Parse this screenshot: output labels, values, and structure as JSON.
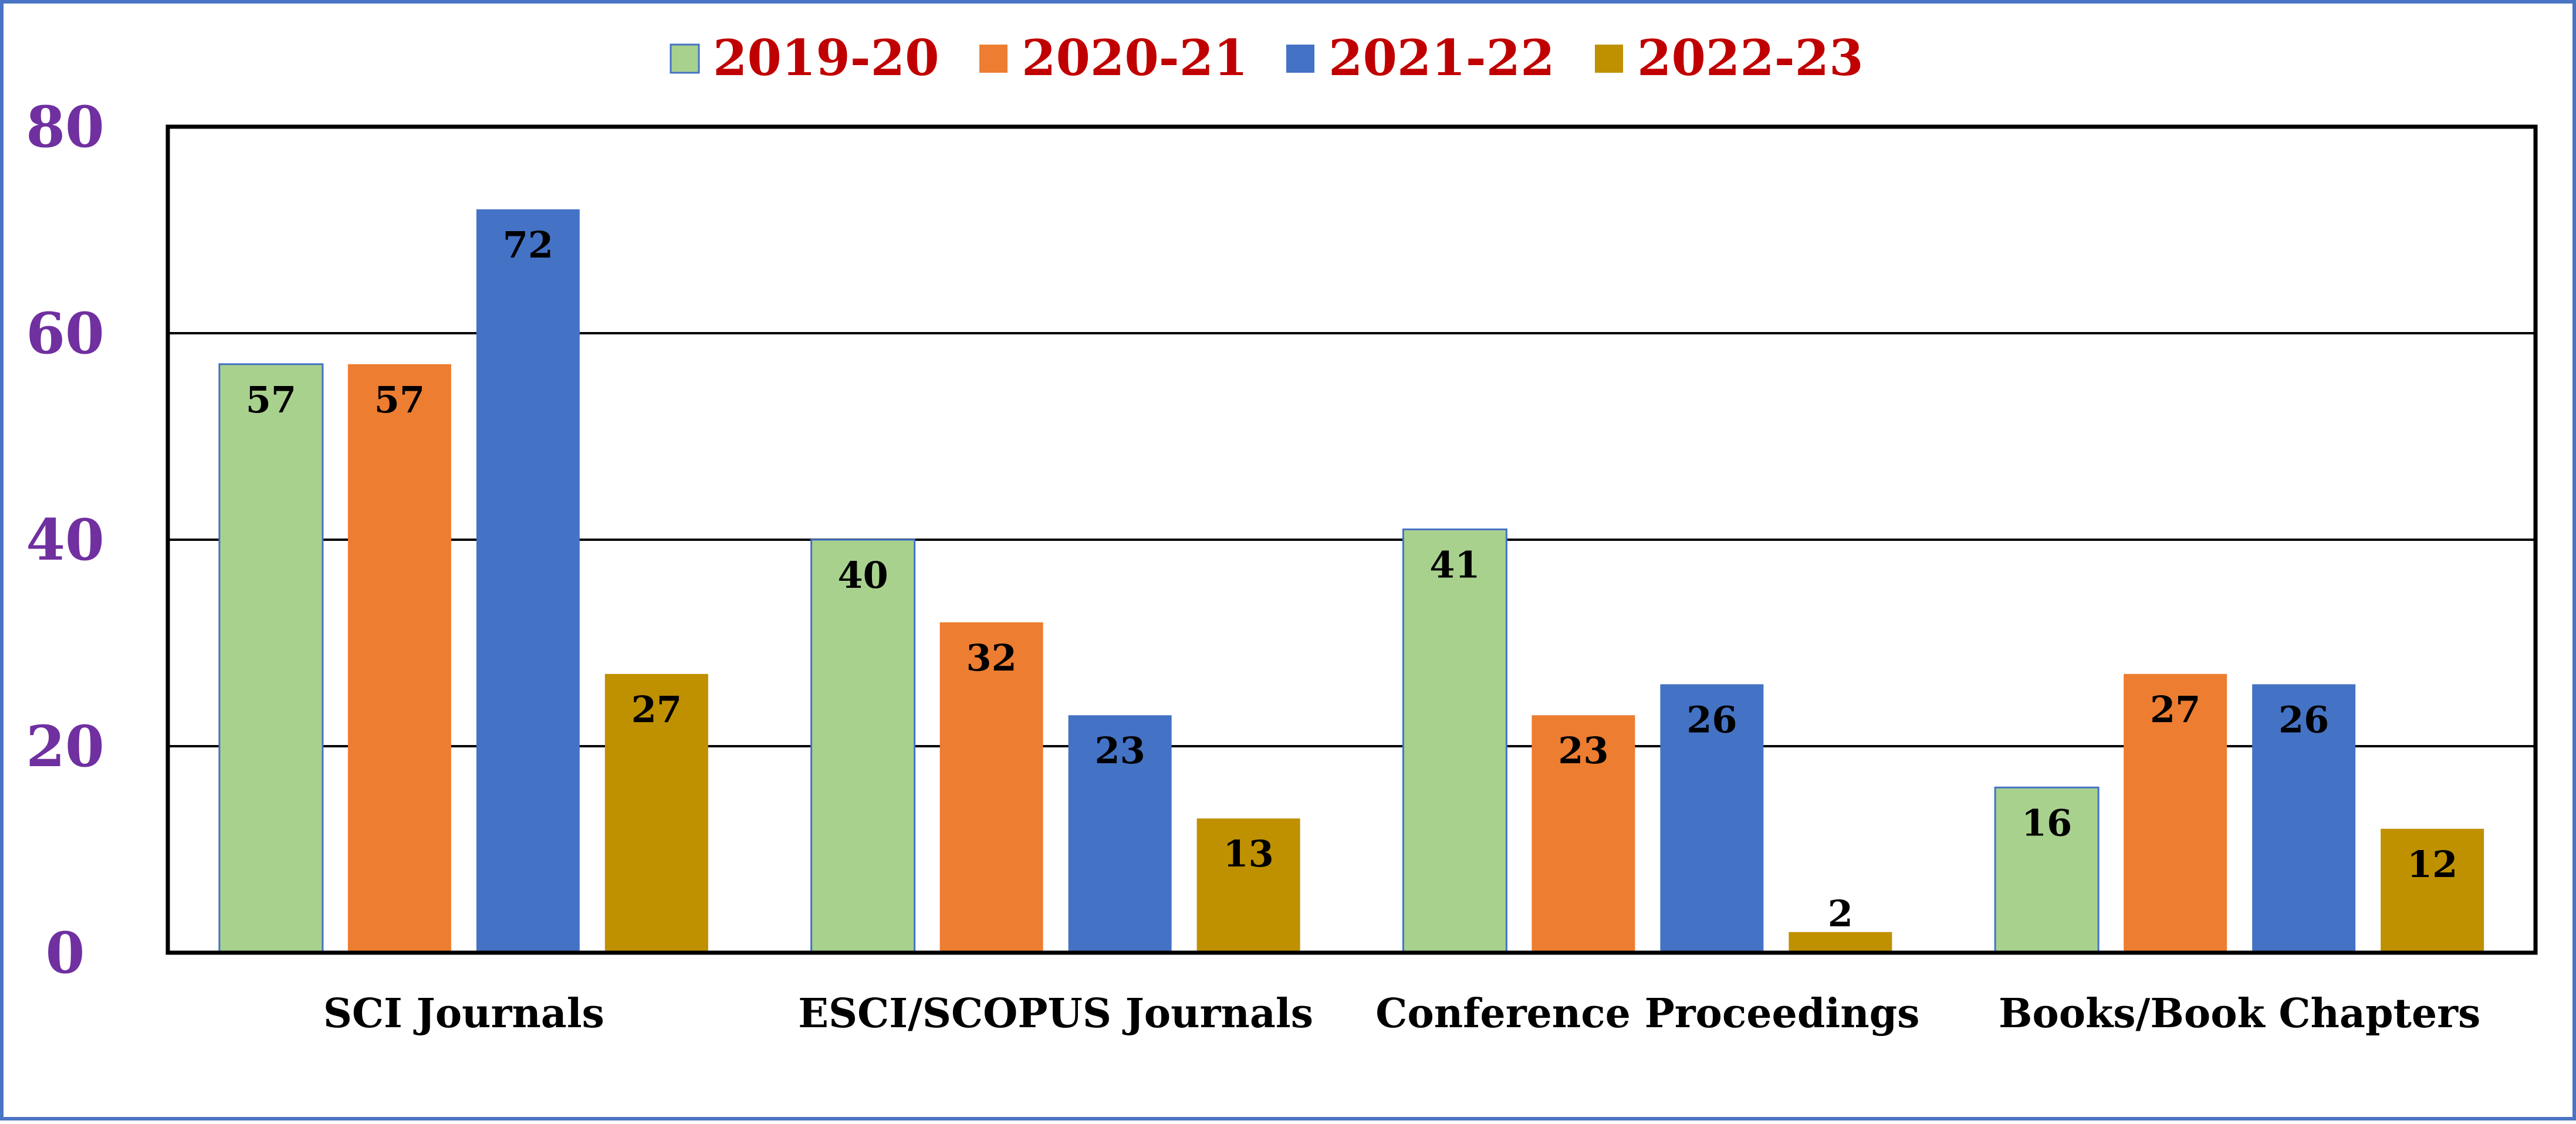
{
  "chart_data": {
    "type": "bar",
    "title": "",
    "xlabel": "",
    "ylabel": "",
    "ylim": [
      0,
      80
    ],
    "yticks": [
      0,
      20,
      40,
      60,
      80
    ],
    "grid": true,
    "legend_position": "top-center",
    "categories": [
      "SCI Journals",
      "ESCI/SCOPUS Journals",
      "Conference Proceedings",
      "Books/Book Chapters"
    ],
    "series": [
      {
        "name": "2019-20",
        "color": "#a9d18e",
        "values": [
          57,
          40,
          41,
          16
        ]
      },
      {
        "name": "2020-21",
        "color": "#ed7d31",
        "values": [
          57,
          32,
          23,
          27
        ]
      },
      {
        "name": "2021-22",
        "color": "#4472c4",
        "values": [
          72,
          23,
          26,
          26
        ]
      },
      {
        "name": "2022-23",
        "color": "#bf9000",
        "values": [
          27,
          13,
          2,
          12
        ]
      }
    ]
  },
  "colors": {
    "frame": "#4a74c4",
    "legend_text": "#c00000",
    "ytick_text": "#7030a0",
    "xtick_text": "#000000",
    "data_label": "#000000",
    "gridline": "#000000"
  }
}
